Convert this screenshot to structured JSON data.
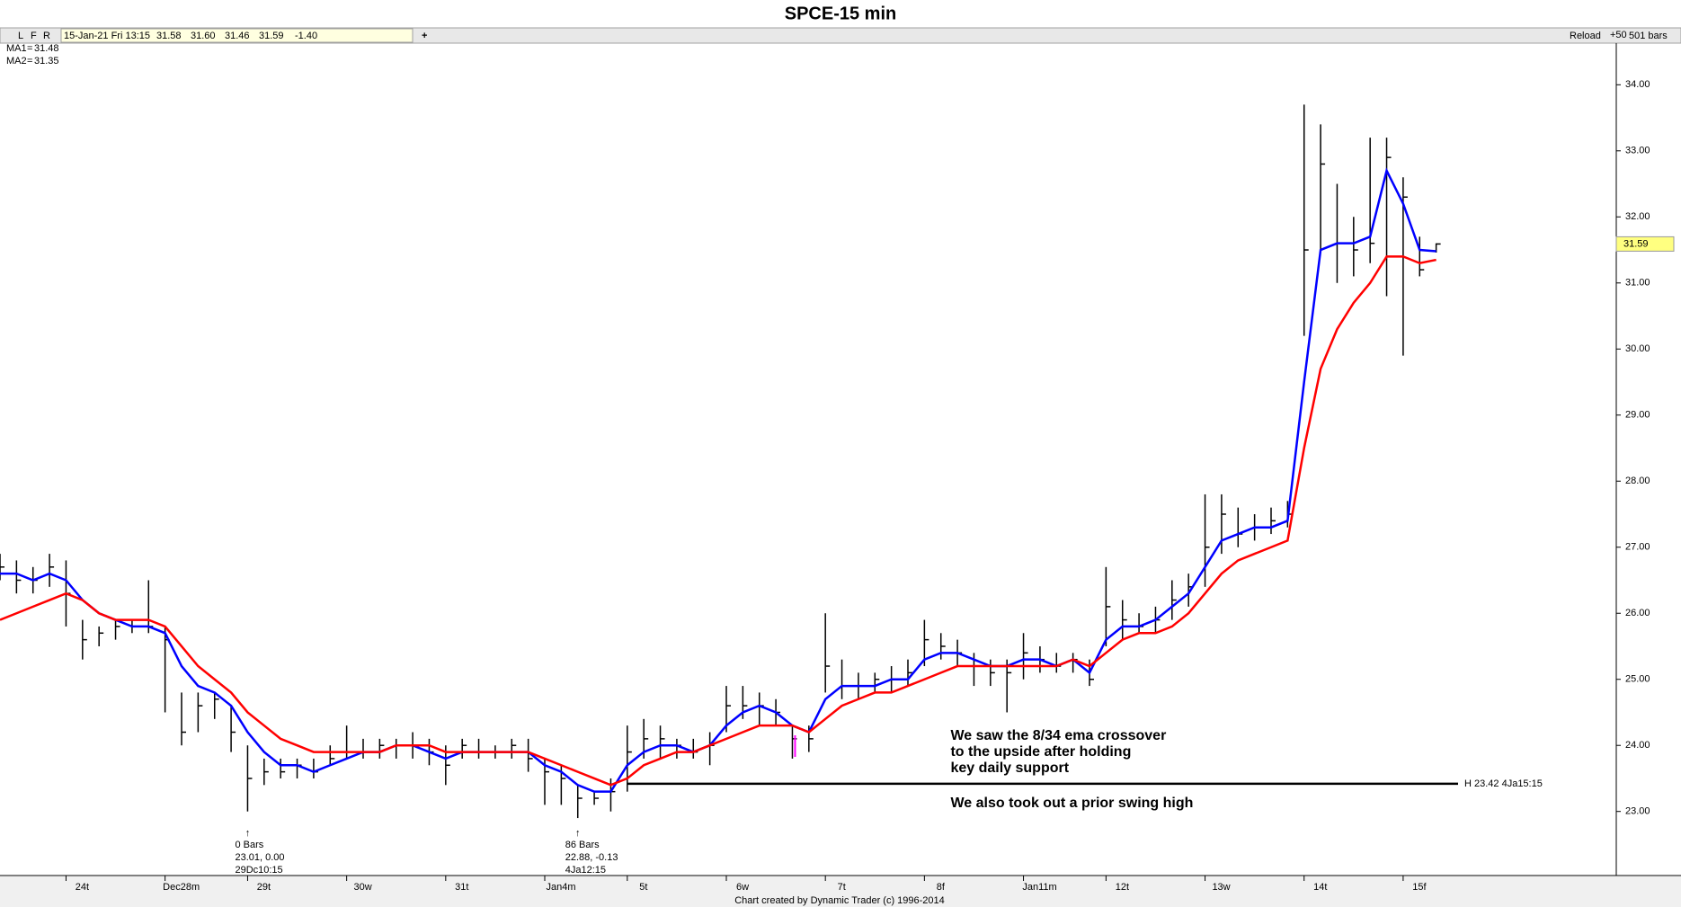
{
  "header": {
    "buttons": [
      "L",
      "F",
      "R"
    ],
    "quote": [
      "15-Jan-21 Fri 13:15",
      "31.58",
      "31.60",
      "31.46",
      "31.59",
      "-1.40"
    ],
    "add": "+",
    "reload": "Reload",
    "step": "+50",
    "bar_count": "501 bars"
  },
  "footer": "Chart created by Dynamic Trader  (c)  1996-2014",
  "chart_data": {
    "type": "ohlc",
    "title": "SPCE-15 min",
    "xlim": [
      0,
      88
    ],
    "xticks": [
      {
        "value": 4,
        "label": "24t"
      },
      {
        "value": 10,
        "label": "Dec28m"
      },
      {
        "value": 15,
        "label": "29t"
      },
      {
        "value": 21,
        "label": "30w"
      },
      {
        "value": 27,
        "label": "31t"
      },
      {
        "value": 33,
        "label": "Jan4m"
      },
      {
        "value": 38,
        "label": "5t"
      },
      {
        "value": 44,
        "label": "6w"
      },
      {
        "value": 50,
        "label": "7t"
      },
      {
        "value": 56,
        "label": "8f"
      },
      {
        "value": 62,
        "label": "Jan11m"
      },
      {
        "value": 67,
        "label": "12t"
      },
      {
        "value": 73,
        "label": "13w"
      },
      {
        "value": 79,
        "label": "14t"
      },
      {
        "value": 85,
        "label": "15f"
      }
    ],
    "ylim": [
      22.03,
      34.63
    ],
    "yticks": [
      {
        "value": 23,
        "label": "23.00"
      },
      {
        "value": 24,
        "label": "24.00"
      },
      {
        "value": 25,
        "label": "25.00"
      },
      {
        "value": 26,
        "label": "26.00"
      },
      {
        "value": 27,
        "label": "27.00"
      },
      {
        "value": 28,
        "label": "28.00"
      },
      {
        "value": 29,
        "label": "29.00"
      },
      {
        "value": 30,
        "label": "30.00"
      },
      {
        "value": 31,
        "label": "31.00"
      },
      {
        "value": 32,
        "label": "32.00"
      },
      {
        "value": 33,
        "label": "33.00"
      },
      {
        "value": 34,
        "label": "34.00"
      }
    ],
    "color": "#000000",
    "high": [
      26.9,
      26.8,
      26.7,
      26.9,
      26.8,
      25.9,
      25.8,
      25.9,
      25.9,
      26.5,
      25.8,
      24.8,
      24.8,
      24.8,
      24.6,
      24.0,
      23.8,
      23.8,
      23.8,
      23.8,
      24.0,
      24.3,
      24.1,
      24.1,
      24.1,
      24.2,
      24.1,
      24.0,
      24.1,
      24.1,
      24.0,
      24.1,
      24.1,
      23.8,
      23.7,
      23.4,
      23.3,
      23.5,
      24.3,
      24.4,
      24.3,
      24.1,
      24.1,
      24.2,
      24.9,
      24.9,
      24.8,
      24.7,
      24.3,
      24.3,
      26.0,
      25.3,
      25.1,
      25.1,
      25.2,
      25.3,
      25.9,
      25.7,
      25.6,
      25.4,
      25.3,
      25.3,
      25.7,
      25.5,
      25.4,
      25.4,
      25.3,
      26.7,
      26.2,
      26.0,
      26.1,
      26.5,
      26.6,
      27.8,
      27.8,
      27.6,
      27.5,
      27.6,
      27.7,
      33.7,
      33.4,
      32.5,
      32.0,
      33.2,
      33.2,
      32.6,
      31.7,
      31.6
    ],
    "low": [
      26.5,
      26.3,
      26.3,
      26.4,
      25.8,
      25.3,
      25.5,
      25.6,
      25.7,
      25.7,
      24.5,
      24.0,
      24.2,
      24.4,
      23.9,
      23.0,
      23.4,
      23.5,
      23.5,
      23.5,
      23.7,
      23.8,
      23.8,
      23.8,
      23.8,
      23.8,
      23.7,
      23.4,
      23.8,
      23.8,
      23.8,
      23.8,
      23.6,
      23.1,
      23.1,
      22.9,
      23.1,
      23.0,
      23.3,
      23.8,
      23.8,
      23.8,
      23.8,
      23.7,
      24.2,
      24.4,
      24.3,
      24.3,
      23.8,
      23.9,
      24.8,
      24.7,
      24.7,
      24.8,
      24.8,
      24.9,
      25.2,
      25.3,
      25.2,
      24.9,
      24.9,
      24.5,
      25.0,
      25.1,
      25.1,
      25.1,
      24.9,
      25.5,
      25.6,
      25.7,
      25.7,
      25.9,
      26.1,
      26.4,
      26.9,
      27.0,
      27.1,
      27.2,
      27.3,
      30.2,
      31.5,
      31.0,
      31.1,
      31.3,
      30.8,
      29.9,
      31.1,
      31.46
    ],
    "close": [
      26.7,
      26.5,
      26.5,
      26.7,
      26.3,
      25.6,
      25.7,
      25.8,
      25.8,
      25.8,
      25.6,
      24.2,
      24.6,
      24.7,
      24.2,
      23.5,
      23.6,
      23.6,
      23.7,
      23.6,
      23.8,
      23.9,
      23.9,
      24.0,
      24.0,
      24.0,
      23.9,
      23.7,
      24.0,
      23.9,
      23.9,
      24.0,
      23.8,
      23.6,
      23.5,
      23.2,
      23.2,
      23.3,
      23.9,
      24.1,
      24.1,
      24.0,
      23.9,
      24.0,
      24.6,
      24.6,
      24.6,
      24.5,
      24.1,
      24.1,
      25.2,
      24.9,
      24.9,
      25.0,
      25.0,
      25.1,
      25.6,
      25.5,
      25.4,
      25.2,
      25.1,
      25.1,
      25.4,
      25.3,
      25.2,
      25.3,
      25.0,
      26.1,
      25.9,
      25.8,
      25.9,
      26.2,
      26.4,
      27.0,
      27.5,
      27.2,
      27.3,
      27.4,
      27.5,
      31.5,
      32.8,
      31.6,
      31.5,
      31.6,
      32.9,
      32.3,
      31.2,
      31.59
    ],
    "series": [
      {
        "name": "MA1",
        "color": "#0000ff",
        "values": [
          26.6,
          26.6,
          26.5,
          26.6,
          26.5,
          26.2,
          26.0,
          25.9,
          25.8,
          25.8,
          25.7,
          25.2,
          24.9,
          24.8,
          24.6,
          24.2,
          23.9,
          23.7,
          23.7,
          23.6,
          23.7,
          23.8,
          23.9,
          23.9,
          24.0,
          24.0,
          23.9,
          23.8,
          23.9,
          23.9,
          23.9,
          23.9,
          23.9,
          23.7,
          23.6,
          23.4,
          23.3,
          23.3,
          23.7,
          23.9,
          24.0,
          24.0,
          23.9,
          24.0,
          24.3,
          24.5,
          24.6,
          24.5,
          24.3,
          24.2,
          24.7,
          24.9,
          24.9,
          24.9,
          25.0,
          25.0,
          25.3,
          25.4,
          25.4,
          25.3,
          25.2,
          25.2,
          25.3,
          25.3,
          25.2,
          25.3,
          25.1,
          25.6,
          25.8,
          25.8,
          25.9,
          26.1,
          26.3,
          26.7,
          27.1,
          27.2,
          27.3,
          27.3,
          27.4,
          29.5,
          31.5,
          31.6,
          31.6,
          31.7,
          32.7,
          32.2,
          31.5,
          31.48
        ]
      },
      {
        "name": "MA2",
        "color": "#ff0000",
        "values": [
          25.9,
          26.0,
          26.1,
          26.2,
          26.3,
          26.2,
          26.0,
          25.9,
          25.9,
          25.9,
          25.8,
          25.5,
          25.2,
          25.0,
          24.8,
          24.5,
          24.3,
          24.1,
          24.0,
          23.9,
          23.9,
          23.9,
          23.9,
          23.9,
          24.0,
          24.0,
          24.0,
          23.9,
          23.9,
          23.9,
          23.9,
          23.9,
          23.9,
          23.8,
          23.7,
          23.6,
          23.5,
          23.4,
          23.5,
          23.7,
          23.8,
          23.9,
          23.9,
          24.0,
          24.1,
          24.2,
          24.3,
          24.3,
          24.3,
          24.2,
          24.4,
          24.6,
          24.7,
          24.8,
          24.8,
          24.9,
          25.0,
          25.1,
          25.2,
          25.2,
          25.2,
          25.2,
          25.2,
          25.2,
          25.2,
          25.3,
          25.2,
          25.4,
          25.6,
          25.7,
          25.7,
          25.8,
          26.0,
          26.3,
          26.6,
          26.8,
          26.9,
          27.0,
          27.1,
          28.5,
          29.7,
          30.3,
          30.7,
          31.0,
          31.4,
          31.4,
          31.3,
          31.35
        ]
      }
    ],
    "hline": {
      "x": 38,
      "value": 23.42,
      "label": "H 23.42 4Ja15:15"
    },
    "bar_notes": [
      {
        "x": 15,
        "lines": [
          "0 Bars",
          "23.01, 0.00",
          "29Dc10:15"
        ]
      },
      {
        "x": 35,
        "lines": [
          "86 Bars",
          "22.88, -0.13",
          "4Ja12:15"
        ]
      }
    ],
    "annotations": [
      {
        "x": 48,
        "lines": [
          "We saw the 8/34 ema crossover",
          "to the upside after holding",
          "key daily support"
        ]
      },
      {
        "x": 48,
        "lines": [
          "We also took out a prior swing high"
        ]
      }
    ]
  }
}
